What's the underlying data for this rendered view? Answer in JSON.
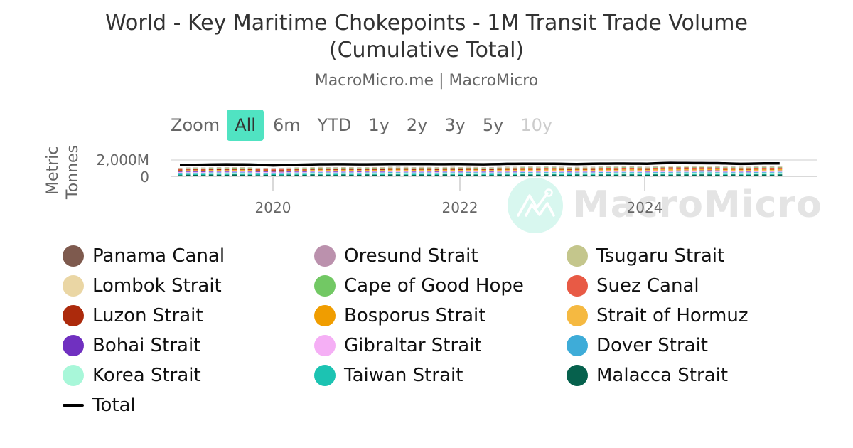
{
  "header": {
    "title_line1": "World - Key Maritime Chokepoints - 1M Transit Trade Volume",
    "title_line2": "(Cumulative Total)",
    "subtitle": "MacroMicro.me | MacroMicro"
  },
  "range_selector": {
    "label": "Zoom",
    "buttons": [
      {
        "label": "All",
        "state": "active"
      },
      {
        "label": "6m",
        "state": "normal"
      },
      {
        "label": "YTD",
        "state": "normal"
      },
      {
        "label": "1y",
        "state": "normal"
      },
      {
        "label": "2y",
        "state": "normal"
      },
      {
        "label": "3y",
        "state": "normal"
      },
      {
        "label": "5y",
        "state": "normal"
      },
      {
        "label": "10y",
        "state": "disabled"
      }
    ],
    "active_color": "#50e3c2"
  },
  "watermark": {
    "text": "MacroMicro",
    "logo": "chart-mountain-logo-icon",
    "circle_color": "#d8f7ef"
  },
  "chart_data": {
    "type": "bar",
    "stacked": true,
    "title": "World - Key Maritime Chokepoints - 1M Transit Trade Volume (Cumulative Total)",
    "subtitle": "MacroMicro.me | MacroMicro",
    "xlabel": "",
    "ylabel": "Metric Tonnes",
    "y_ticks": [
      "0",
      "2,000M"
    ],
    "ylim": [
      0,
      2000
    ],
    "y_unit": "M metric tonnes",
    "x_ticks": [
      "2020",
      "2022",
      "2024"
    ],
    "x_range": [
      "2019-01",
      "2025-06"
    ],
    "grid": true,
    "legend_position": "bottom",
    "series": [
      {
        "name": "Panama Canal",
        "color": "#7e5a4e",
        "kind": "column",
        "approx_monthly": 20
      },
      {
        "name": "Oresund Strait",
        "color": "#bb91ad",
        "kind": "column",
        "approx_monthly": 20
      },
      {
        "name": "Tsugaru Strait",
        "color": "#c4c68c",
        "kind": "column",
        "approx_monthly": 15
      },
      {
        "name": "Lombok Strait",
        "color": "#ead6a4",
        "kind": "column",
        "approx_monthly": 40
      },
      {
        "name": "Cape of Good Hope",
        "color": "#72c864",
        "kind": "column",
        "approx_monthly": 60
      },
      {
        "name": "Suez Canal",
        "color": "#e85a45",
        "kind": "column",
        "approx_monthly": 100
      },
      {
        "name": "Luzon Strait",
        "color": "#ac2a0c",
        "kind": "column",
        "approx_monthly": 100
      },
      {
        "name": "Bosporus Strait",
        "color": "#f09d00",
        "kind": "column",
        "approx_monthly": 60
      },
      {
        "name": "Strait of Hormuz",
        "color": "#f5b941",
        "kind": "column",
        "approx_monthly": 90
      },
      {
        "name": "Bohai Strait",
        "color": "#7030c0",
        "kind": "column",
        "approx_monthly": 90
      },
      {
        "name": "Gibraltar Strait",
        "color": "#f5aff5",
        "kind": "column",
        "approx_monthly": 90
      },
      {
        "name": "Dover Strait",
        "color": "#3eacd8",
        "kind": "column",
        "approx_monthly": 80
      },
      {
        "name": "Korea Strait",
        "color": "#a8f7d9",
        "kind": "column",
        "approx_monthly": 90
      },
      {
        "name": "Taiwan Strait",
        "color": "#1cc3b2",
        "kind": "column",
        "approx_monthly": 140
      },
      {
        "name": "Malacca Strait",
        "color": "#06614d",
        "kind": "column",
        "approx_monthly": 210
      },
      {
        "name": "Total",
        "color": "#000000",
        "kind": "line",
        "values_by_quarter": {
          "x": [
            "2019Q1",
            "2019Q2",
            "2019Q3",
            "2019Q4",
            "2020Q1",
            "2020Q2",
            "2020Q3",
            "2020Q4",
            "2021Q1",
            "2021Q2",
            "2021Q3",
            "2021Q4",
            "2022Q1",
            "2022Q2",
            "2022Q3",
            "2022Q4",
            "2023Q1",
            "2023Q2",
            "2023Q3",
            "2023Q4",
            "2024Q1",
            "2024Q2",
            "2024Q3",
            "2024Q4",
            "2025Q1",
            "2025Q2"
          ],
          "y": [
            1320,
            1340,
            1380,
            1360,
            1250,
            1330,
            1390,
            1400,
            1380,
            1410,
            1420,
            1400,
            1410,
            1380,
            1440,
            1460,
            1450,
            1420,
            1470,
            1480,
            1460,
            1560,
            1530,
            1520,
            1440,
            1500
          ]
        }
      }
    ]
  },
  "axis": {
    "y_title_line1": "Metric",
    "y_title_line2": "Tonnes",
    "y_tick_top": "2,000M",
    "y_tick_zero": "0",
    "x_ticks": [
      "2020",
      "2022",
      "2024"
    ]
  },
  "legend": {
    "items": [
      {
        "label": "Panama Canal",
        "color": "#7e5a4e",
        "col": 0,
        "row": 0
      },
      {
        "label": "Oresund Strait",
        "color": "#bb91ad",
        "col": 1,
        "row": 0
      },
      {
        "label": "Tsugaru Strait",
        "color": "#c4c68c",
        "col": 2,
        "row": 0
      },
      {
        "label": "Lombok Strait",
        "color": "#ead6a4",
        "col": 0,
        "row": 1
      },
      {
        "label": "Cape of Good Hope",
        "color": "#72c864",
        "col": 1,
        "row": 1
      },
      {
        "label": "Suez Canal",
        "color": "#e85a45",
        "col": 2,
        "row": 1
      },
      {
        "label": "Luzon Strait",
        "color": "#ac2a0c",
        "col": 0,
        "row": 2
      },
      {
        "label": "Bosporus Strait",
        "color": "#f09d00",
        "col": 1,
        "row": 2
      },
      {
        "label": "Strait of Hormuz",
        "color": "#f5b941",
        "col": 2,
        "row": 2
      },
      {
        "label": "Bohai Strait",
        "color": "#7030c0",
        "col": 0,
        "row": 3
      },
      {
        "label": "Gibraltar Strait",
        "color": "#f5aff5",
        "col": 1,
        "row": 3
      },
      {
        "label": "Dover Strait",
        "color": "#3eacd8",
        "col": 2,
        "row": 3
      },
      {
        "label": "Korea Strait",
        "color": "#a8f7d9",
        "col": 0,
        "row": 4
      },
      {
        "label": "Taiwan Strait",
        "color": "#1cc3b2",
        "col": 1,
        "row": 4
      },
      {
        "label": "Malacca Strait",
        "color": "#06614d",
        "col": 2,
        "row": 4
      },
      {
        "label": "Total",
        "color": "#000000",
        "col": 0,
        "row": 5,
        "type": "line"
      }
    ]
  }
}
